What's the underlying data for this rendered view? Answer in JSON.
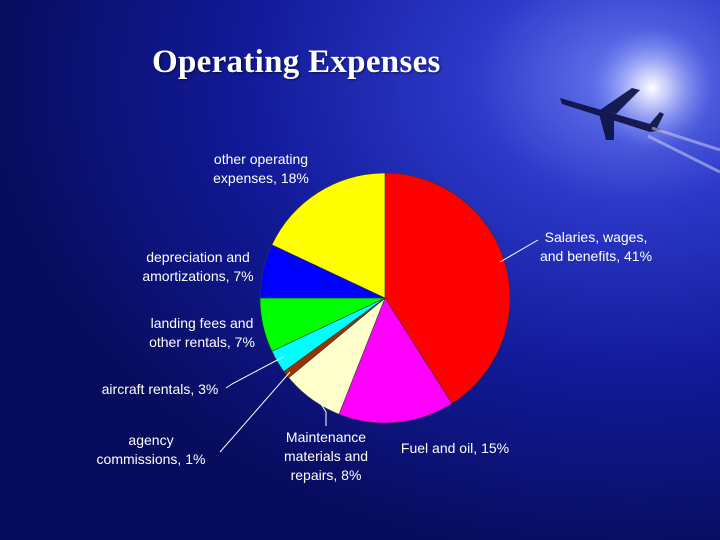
{
  "slide": {
    "title": "Operating Expenses"
  },
  "chart_data": {
    "type": "pie",
    "title": "Operating Expenses",
    "slices": [
      {
        "label_lines": [
          "Salaries, wages,",
          "and benefits, 41%"
        ],
        "value": 41,
        "color": "#ff0000"
      },
      {
        "label_lines": [
          "Fuel and oil, 15%"
        ],
        "value": 15,
        "color": "#ff00ff"
      },
      {
        "label_lines": [
          "Maintenance",
          "materials and",
          "repairs, 8%"
        ],
        "value": 8,
        "color": "#ffffcc"
      },
      {
        "label_lines": [
          "agency",
          "commissions, 1%"
        ],
        "value": 1,
        "color": "#993300"
      },
      {
        "label_lines": [
          "aircraft rentals, 3%"
        ],
        "value": 3,
        "color": "#00ffff"
      },
      {
        "label_lines": [
          "landing fees and",
          "other rentals, 7%"
        ],
        "value": 7,
        "color": "#00ff00"
      },
      {
        "label_lines": [
          "depreciation and",
          "amortizations, 7%"
        ],
        "value": 7,
        "color": "#0000ff"
      },
      {
        "label_lines": [
          "other operating",
          "expenses, 18%"
        ],
        "value": 18,
        "color": "#ffff00"
      }
    ],
    "start_angle_deg": 0,
    "direction": "clockwise",
    "legend": "none"
  }
}
